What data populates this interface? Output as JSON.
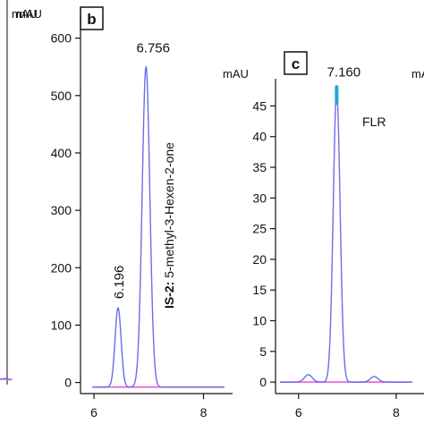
{
  "chart_data": [
    {
      "panel": "b",
      "type": "line",
      "ylabel": "mAU",
      "ylim": [
        -10,
        640
      ],
      "xlim": [
        5.95,
        8.4
      ],
      "yticks": [
        0,
        100,
        200,
        300,
        400,
        500,
        600
      ],
      "xticks": [
        6,
        8
      ],
      "peaks": [
        {
          "x": 6.44,
          "y": 130,
          "width": 0.055,
          "label": "6.196"
        },
        {
          "x": 6.95,
          "y": 550,
          "width": 0.07,
          "label": "6.756"
        }
      ],
      "baseline": -8,
      "annotation_bold": "IS-2:",
      "annotation_rest": " 5-methyl-3-Hexen-2-one",
      "colors": {
        "signal": "#6a6ee8",
        "baseline": "#ee66dd",
        "frame": "#111111"
      }
    },
    {
      "panel": "c",
      "type": "line",
      "ylabel": "mAU",
      "ylim": [
        -1,
        49
      ],
      "xlim": [
        5.6,
        8.35
      ],
      "yticks": [
        0,
        5,
        10,
        15,
        20,
        25,
        30,
        35,
        40,
        45
      ],
      "xticks": [
        6,
        8
      ],
      "peaks": [
        {
          "x": 6.78,
          "y": 47.5,
          "width": 0.07,
          "label": "7.160"
        }
      ],
      "bumps": [
        {
          "x": 6.2,
          "y": 1.2,
          "width": 0.08
        },
        {
          "x": 7.55,
          "y": 0.9,
          "width": 0.08
        }
      ],
      "baseline": 0,
      "annotation": "FLR",
      "colors": {
        "signal": "#6a6ee8",
        "baseline": "#ee66dd",
        "apex": "#22a6d6",
        "frame": "#111111"
      }
    }
  ],
  "left_partial": {
    "ylabel": "mAU"
  },
  "right_partial": {
    "ylabel": "mAU"
  }
}
